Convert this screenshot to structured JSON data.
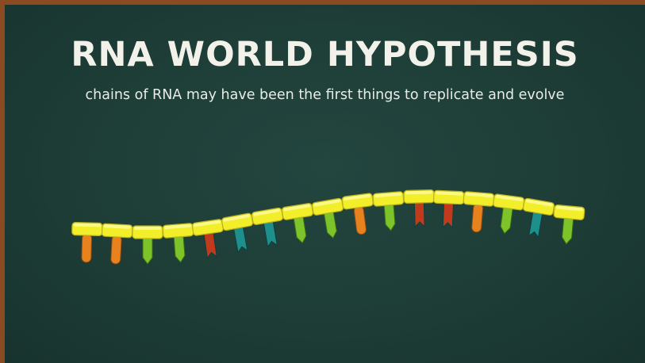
{
  "header": {
    "title": "RNA WORLD HYPOTHESIS",
    "subtitle": "chains of RNA may have been the first things to replicate and evolve"
  }
}
